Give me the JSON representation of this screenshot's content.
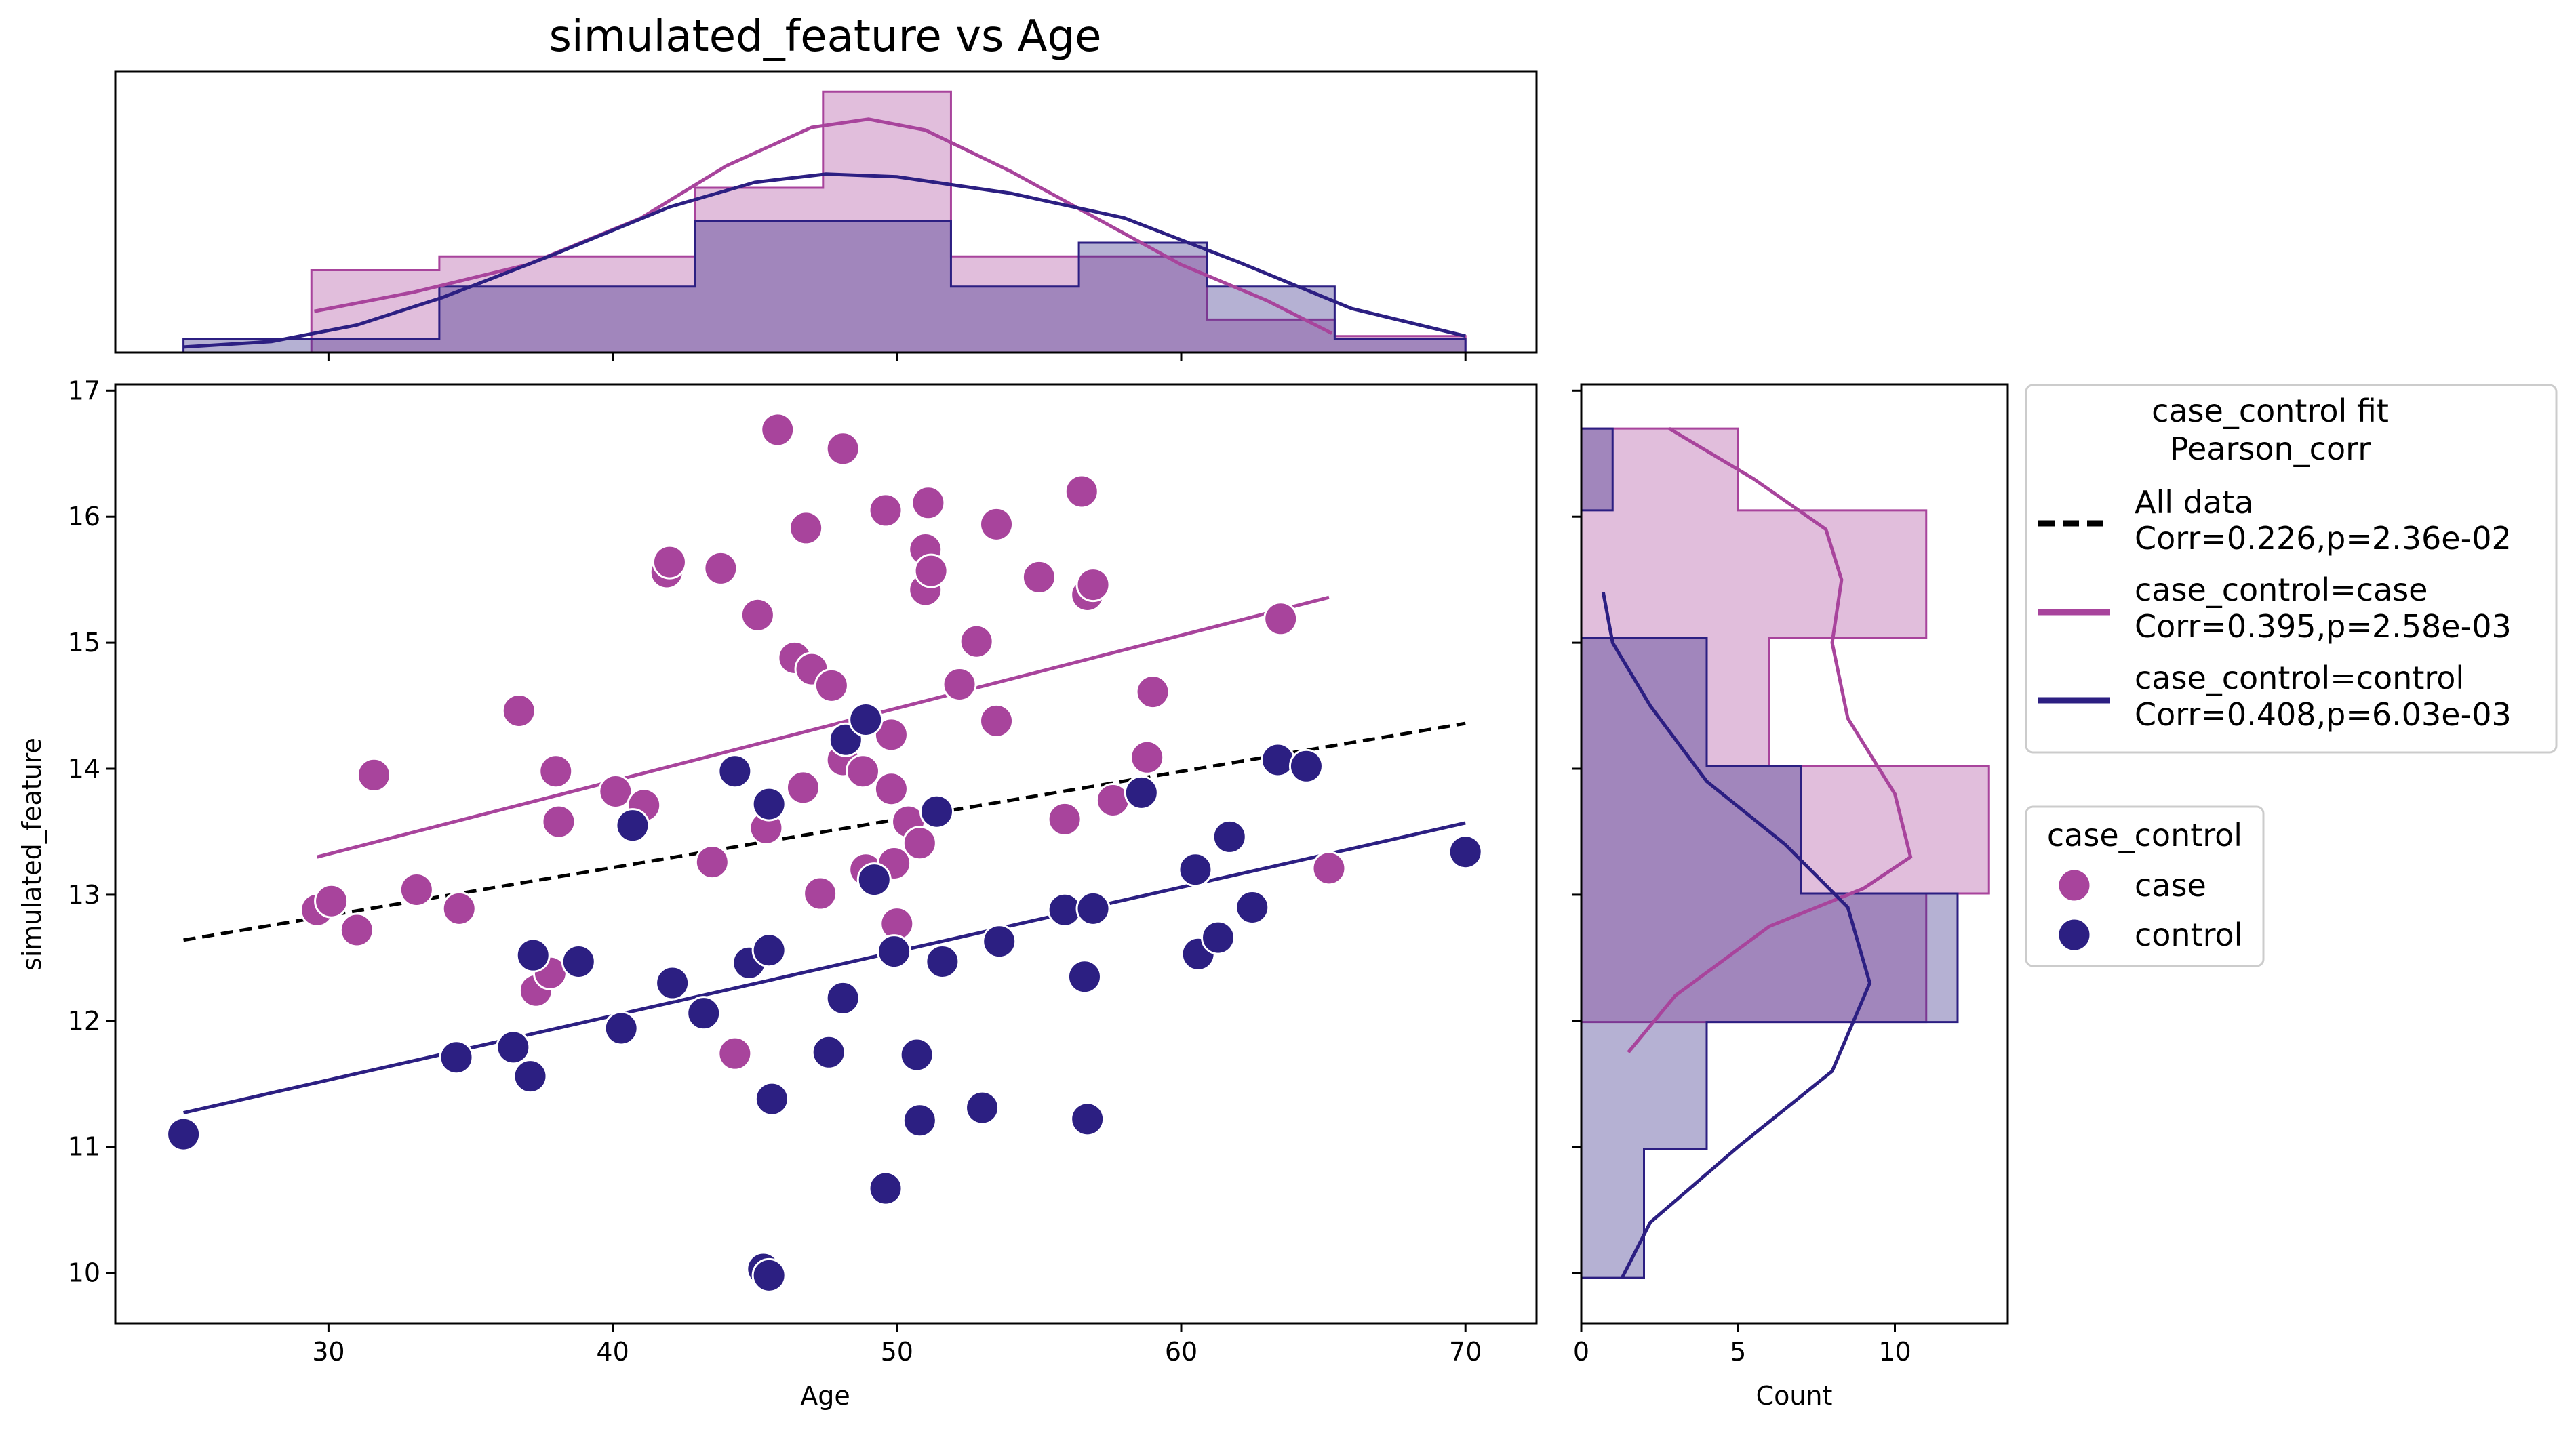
{
  "chart_data": {
    "type": "scatter",
    "title": "simulated_feature vs Age",
    "xlabel": "Age",
    "ylabel": "simulated_feature",
    "xlim": [
      22.5,
      72.5
    ],
    "ylim": [
      9.6,
      17.05
    ],
    "xticks": [
      30,
      40,
      50,
      60,
      70
    ],
    "yticks": [
      10,
      11,
      12,
      13,
      14,
      15,
      16,
      17
    ],
    "grid": false,
    "colors": {
      "case": "#a8449c",
      "control": "#2c1f82",
      "all": "#000000"
    },
    "series": [
      {
        "name": "case",
        "points": [
          [
            29.6,
            12.88
          ],
          [
            30.1,
            12.95
          ],
          [
            31,
            12.72
          ],
          [
            31.6,
            13.95
          ],
          [
            33.1,
            13.04
          ],
          [
            34.6,
            12.89
          ],
          [
            36.7,
            14.46
          ],
          [
            37.3,
            12.24
          ],
          [
            37.8,
            12.38
          ],
          [
            38.1,
            13.58
          ],
          [
            38,
            13.98
          ],
          [
            40.1,
            13.82
          ],
          [
            41.1,
            13.71
          ],
          [
            41.9,
            15.56
          ],
          [
            42,
            15.64
          ],
          [
            43.5,
            13.26
          ],
          [
            43.8,
            15.59
          ],
          [
            44.3,
            11.74
          ],
          [
            45.1,
            15.22
          ],
          [
            45.4,
            13.53
          ],
          [
            45.8,
            16.69
          ],
          [
            46.4,
            14.88
          ],
          [
            46.8,
            15.91
          ],
          [
            47,
            14.79
          ],
          [
            46.7,
            13.85
          ],
          [
            47.3,
            13.01
          ],
          [
            47.7,
            14.66
          ],
          [
            48.1,
            16.54
          ],
          [
            48.1,
            14.07
          ],
          [
            48.8,
            13.98
          ],
          [
            48.9,
            13.2
          ],
          [
            49.6,
            16.05
          ],
          [
            49.8,
            14.27
          ],
          [
            49.8,
            13.84
          ],
          [
            49.9,
            13.25
          ],
          [
            50,
            12.77
          ],
          [
            50.4,
            13.58
          ],
          [
            50.8,
            13.41
          ],
          [
            51,
            15.42
          ],
          [
            51,
            15.74
          ],
          [
            51.1,
            16.11
          ],
          [
            51.2,
            15.57
          ],
          [
            52.2,
            14.67
          ],
          [
            52.8,
            15.01
          ],
          [
            53.5,
            15.94
          ],
          [
            53.5,
            14.38
          ],
          [
            55,
            15.52
          ],
          [
            55.9,
            13.6
          ],
          [
            56.5,
            16.2
          ],
          [
            56.7,
            15.38
          ],
          [
            56.9,
            15.46
          ],
          [
            57.6,
            13.75
          ],
          [
            58.8,
            14.09
          ],
          [
            59,
            14.61
          ],
          [
            63.5,
            15.19
          ],
          [
            65.2,
            13.21
          ]
        ]
      },
      {
        "name": "control",
        "points": [
          [
            24.9,
            11.1
          ],
          [
            34.5,
            11.71
          ],
          [
            36.5,
            11.79
          ],
          [
            37.1,
            11.56
          ],
          [
            37.2,
            12.52
          ],
          [
            38.8,
            12.47
          ],
          [
            40.3,
            11.94
          ],
          [
            40.7,
            13.55
          ],
          [
            42.1,
            12.3
          ],
          [
            43.2,
            12.06
          ],
          [
            44.3,
            13.98
          ],
          [
            44.8,
            12.46
          ],
          [
            45.3,
            10.03
          ],
          [
            45.5,
            12.56
          ],
          [
            45.5,
            13.72
          ],
          [
            45.5,
            9.98
          ],
          [
            45.6,
            11.38
          ],
          [
            47.6,
            11.75
          ],
          [
            48.1,
            12.18
          ],
          [
            48.2,
            14.23
          ],
          [
            48.9,
            14.39
          ],
          [
            49.2,
            13.12
          ],
          [
            49.6,
            10.67
          ],
          [
            49.9,
            12.55
          ],
          [
            50.7,
            11.73
          ],
          [
            50.8,
            11.21
          ],
          [
            51.6,
            12.47
          ],
          [
            51.4,
            13.66
          ],
          [
            53,
            11.31
          ],
          [
            53.6,
            12.63
          ],
          [
            55.9,
            12.88
          ],
          [
            56.6,
            12.35
          ],
          [
            56.7,
            11.22
          ],
          [
            56.9,
            12.89
          ],
          [
            58.6,
            13.81
          ],
          [
            60.5,
            13.2
          ],
          [
            60.6,
            12.53
          ],
          [
            61.3,
            12.66
          ],
          [
            61.7,
            13.46
          ],
          [
            62.5,
            12.9
          ],
          [
            63.4,
            14.07
          ],
          [
            64.4,
            14.02
          ],
          [
            70,
            13.34
          ]
        ]
      }
    ],
    "fits": [
      {
        "name": "All data",
        "style": "dashed",
        "x": [
          24.9,
          70
        ],
        "y": [
          12.64,
          14.36
        ]
      },
      {
        "name": "case_control=case",
        "style": "solid",
        "x": [
          29.6,
          65.2
        ],
        "y": [
          13.3,
          15.36
        ]
      },
      {
        "name": "case_control=control",
        "style": "solid",
        "x": [
          24.9,
          70
        ],
        "y": [
          11.27,
          13.57
        ]
      }
    ],
    "top_histogram": {
      "bin_edges": [
        24.9,
        29.4,
        33.9,
        38.4,
        42.9,
        47.4,
        51.9,
        56.4,
        60.9,
        65.4,
        70
      ],
      "case_counts": [
        0,
        3,
        3.5,
        3.5,
        6,
        9.5,
        3.5,
        3.5,
        1.2,
        0.6
      ],
      "control_counts": [
        0.5,
        0.5,
        2.4,
        2.4,
        4.8,
        4.8,
        2.4,
        4.0,
        2.4,
        0.5
      ],
      "max": 10,
      "case_kde": [
        [
          29.5,
          1.5
        ],
        [
          33,
          2.2
        ],
        [
          37,
          3.2
        ],
        [
          41,
          4.9
        ],
        [
          44,
          6.8
        ],
        [
          47,
          8.2
        ],
        [
          49,
          8.5
        ],
        [
          51,
          8.1
        ],
        [
          54,
          6.6
        ],
        [
          57,
          4.9
        ],
        [
          60,
          3.2
        ],
        [
          63,
          1.9
        ],
        [
          65.3,
          0.7
        ]
      ],
      "control_kde": [
        [
          24.9,
          0.2
        ],
        [
          28,
          0.4
        ],
        [
          31,
          1.0
        ],
        [
          34,
          2.0
        ],
        [
          38,
          3.6
        ],
        [
          42,
          5.3
        ],
        [
          45,
          6.2
        ],
        [
          47.5,
          6.5
        ],
        [
          50,
          6.4
        ],
        [
          54,
          5.8
        ],
        [
          58,
          4.9
        ],
        [
          62,
          3.3
        ],
        [
          66,
          1.6
        ],
        [
          70,
          0.6
        ]
      ]
    },
    "right_histogram": {
      "bin_edges": [
        9.96,
        10.98,
        11.99,
        13.01,
        14.02,
        15.04,
        16.05,
        16.7
      ],
      "case_counts": [
        0,
        0,
        11,
        13,
        6,
        11,
        5
      ],
      "control_counts": [
        2,
        4,
        12,
        7,
        4,
        0,
        1
      ],
      "xticks": [
        0,
        5,
        10
      ],
      "xlim": [
        0,
        13.6
      ],
      "xlabel": "Count",
      "case_kde": [
        [
          1.5,
          11.75
        ],
        [
          3,
          12.2
        ],
        [
          6,
          12.75
        ],
        [
          9,
          13.05
        ],
        [
          10.5,
          13.3
        ],
        [
          10,
          13.8
        ],
        [
          8.5,
          14.4
        ],
        [
          8,
          15.0
        ],
        [
          8.3,
          15.5
        ],
        [
          7.8,
          15.9
        ],
        [
          5.5,
          16.3
        ],
        [
          2.8,
          16.7
        ]
      ],
      "control_kde": [
        [
          1.3,
          9.96
        ],
        [
          2.2,
          10.4
        ],
        [
          5,
          11.0
        ],
        [
          8,
          11.6
        ],
        [
          9.2,
          12.3
        ],
        [
          8.5,
          12.9
        ],
        [
          6.5,
          13.4
        ],
        [
          4,
          13.9
        ],
        [
          2.2,
          14.5
        ],
        [
          1,
          15.0
        ],
        [
          0.7,
          15.4
        ]
      ]
    }
  },
  "legend_fit": {
    "title_line1": "case_control fit",
    "title_line2": "Pearson_corr",
    "items": [
      {
        "label_line1": "All data",
        "label_line2": "Corr=0.226,p=2.36e-02",
        "color": "#000000",
        "style": "dashed"
      },
      {
        "label_line1": "case_control=case",
        "label_line2": "Corr=0.395,p=2.58e-03",
        "color": "#a8449c",
        "style": "solid"
      },
      {
        "label_line1": "case_control=control",
        "label_line2": "Corr=0.408,p=6.03e-03",
        "color": "#2c1f82",
        "style": "solid"
      }
    ]
  },
  "legend_group": {
    "title": "case_control",
    "items": [
      {
        "label": "case",
        "color": "#a8449c"
      },
      {
        "label": "control",
        "color": "#2c1f82"
      }
    ]
  }
}
